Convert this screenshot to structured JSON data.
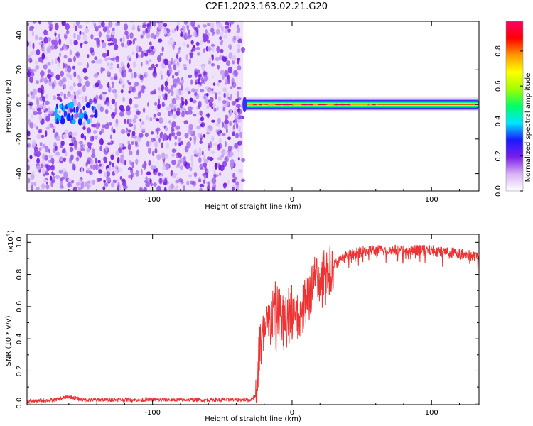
{
  "title": "C2E1.2023.163.02.21.G20",
  "chart_data": [
    {
      "type": "heatmap",
      "xlabel": "Height of straight line (km)",
      "ylabel": "Frequency (Hz)",
      "xlim": [
        -190,
        134
      ],
      "ylim": [
        -50,
        48
      ],
      "xticks": [
        -100,
        0,
        100
      ],
      "xtick_labels": [
        "-100",
        "0",
        "100"
      ],
      "yticks": [
        -40,
        -20,
        0,
        20,
        40
      ],
      "ytick_labels": [
        "-40",
        "-20",
        "0",
        "20",
        "40"
      ],
      "colorbar": {
        "label": "Normalized spectral amplitude",
        "range": [
          0,
          0.97
        ],
        "ticks": [
          0.0,
          0.2,
          0.4,
          0.6,
          0.8
        ],
        "tick_labels": [
          "0.0",
          "0.2",
          "0.4",
          "0.6",
          "0.8"
        ],
        "colors": [
          "#ffffff",
          "#d9b3f5",
          "#7a1fe8",
          "#1a1aff",
          "#00e5ff",
          "#00ff66",
          "#a0ff00",
          "#ffff00",
          "#ff9900",
          "#ff0000",
          "#ff0066"
        ]
      },
      "regions": [
        {
          "name": "noise",
          "x_range": [
            -190,
            -35
          ],
          "y_range": [
            -50,
            48
          ],
          "amplitude": 0.12
        },
        {
          "name": "signal-band",
          "x_range": [
            -35,
            134
          ],
          "y_center": 0,
          "half_width_hz": 3,
          "amplitude": 0.95
        },
        {
          "name": "noise-peak",
          "x_range": [
            -170,
            -140
          ],
          "y_center": -5,
          "amplitude": 0.35
        }
      ]
    },
    {
      "type": "line",
      "xlabel": "Height of straight line (km)",
      "ylabel": "SNR (10 * v/v)",
      "y_exponent_label": "(x10",
      "y_exponent": "4",
      "xlim": [
        -190,
        134
      ],
      "ylim": [
        -0.01,
        1.05
      ],
      "xticks": [
        -100,
        0,
        100
      ],
      "xtick_labels": [
        "-100",
        "0",
        "100"
      ],
      "yticks": [
        0.0,
        0.2,
        0.4,
        0.6,
        0.8,
        1.0
      ],
      "ytick_labels": [
        "0.0",
        "0.2",
        "0.4",
        "0.6",
        "0.8",
        "1.0"
      ],
      "line_color": "#ee3333",
      "series": [
        {
          "x": [
            -190,
            -170,
            -160,
            -150,
            -140,
            -120,
            -100,
            -80,
            -60,
            -40,
            -30,
            -26,
            -24,
            -22,
            -20,
            -16,
            -12,
            -8,
            -4,
            0,
            4,
            8,
            12,
            16,
            18,
            20,
            24,
            28,
            32,
            36,
            40,
            45,
            50,
            55,
            60,
            70,
            80,
            90,
            100,
            110,
            120,
            134
          ],
          "y": [
            0.01,
            0.02,
            0.04,
            0.02,
            0.02,
            0.02,
            0.02,
            0.02,
            0.02,
            0.02,
            0.02,
            0.05,
            0.3,
            0.38,
            0.42,
            0.5,
            0.6,
            0.55,
            0.55,
            0.6,
            0.55,
            0.62,
            0.7,
            0.75,
            0.78,
            0.78,
            0.8,
            0.85,
            0.87,
            0.9,
            0.92,
            0.93,
            0.94,
            0.95,
            0.95,
            0.95,
            0.95,
            0.95,
            0.95,
            0.94,
            0.93,
            0.91
          ]
        }
      ]
    }
  ]
}
